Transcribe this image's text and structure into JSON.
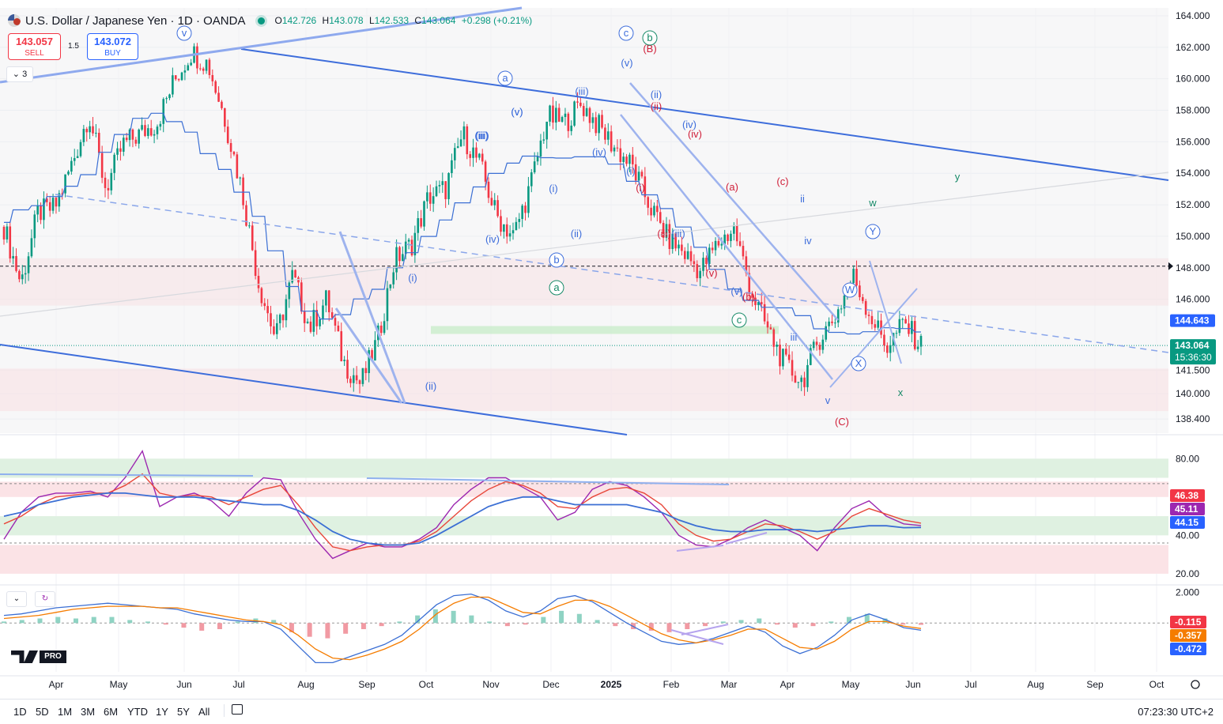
{
  "header": {
    "symbol": "U.S. Dollar / Japanese Yen · 1D · OANDA",
    "o_label": "O",
    "o": "142.726",
    "h_label": "H",
    "h": "143.078",
    "l_label": "L",
    "l": "142.533",
    "c_label": "C",
    "c": "143.064",
    "change": "+0.298 (+0.21%)"
  },
  "trade": {
    "sell_price": "143.057",
    "sell_label": "SELL",
    "spread": "1.5",
    "buy_price": "143.072",
    "buy_label": "BUY"
  },
  "collapse_label": "⌄ 3",
  "colors": {
    "up": "#089981",
    "down": "#f23645",
    "channel": "#3d6ddb",
    "ma": "#3b6fd4",
    "rsi": "#9c27b0",
    "signal": "#f57c00"
  },
  "chart_data": [
    {
      "type": "line",
      "subtype": "candlestick",
      "title": "U.S. Dollar / Japanese Yen · 1D · OANDA",
      "x": [
        "Apr",
        "May",
        "Jun",
        "Jul",
        "Aug",
        "Sep",
        "Oct",
        "Nov",
        "Dec",
        "2025",
        "Feb",
        "Mar",
        "Apr",
        "May",
        "Jun",
        "Jul",
        "Aug",
        "Sep",
        "Oct"
      ],
      "ylim": [
        137.5,
        164.5
      ],
      "y_ticks": [
        "164.000",
        "162.000",
        "160.000",
        "158.000",
        "156.000",
        "154.000",
        "152.000",
        "150.000",
        "148.000",
        "146.000",
        "141.500",
        "140.000",
        "138.400"
      ],
      "series": [
        {
          "values": [
            [
              "Mar",
              150.6
            ],
            [
              "Mar",
              147.0
            ],
            [
              "Apr",
              151.5
            ],
            [
              "Apr",
              151.8
            ],
            [
              "Apr",
              154.6
            ],
            [
              "May",
              157.8
            ],
            [
              "May",
              153.0
            ],
            [
              "May",
              155.8
            ],
            [
              "Jun",
              156.5
            ],
            [
              "Jun",
              157.2
            ],
            [
              "Jun",
              159.8
            ],
            [
              "Jul",
              161.7
            ],
            [
              "Jul",
              161.0
            ],
            [
              "Jul",
              157.5
            ],
            [
              "Jul",
              153.0
            ],
            [
              "Aug",
              147.0
            ],
            [
              "Aug",
              143.5
            ],
            [
              "Aug",
              147.5
            ],
            [
              "Aug",
              144.2
            ],
            [
              "Sep",
              146.0
            ],
            [
              "Sep",
              142.0
            ],
            [
              "Sep",
              140.6
            ],
            [
              "Oct",
              143.4
            ],
            [
              "Oct",
              148.5
            ],
            [
              "Oct",
              149.5
            ],
            [
              "Oct",
              152.5
            ],
            [
              "Nov",
              153.0
            ],
            [
              "Nov",
              156.5
            ],
            [
              "Nov",
              154.6
            ],
            [
              "Dec",
              151.3
            ],
            [
              "Dec",
              150.0
            ],
            [
              "Dec",
              153.2
            ],
            [
              "Dec",
              157.6
            ],
            [
              "2025",
              157.2
            ],
            [
              "2025",
              158.4
            ],
            [
              "2025",
              157.0
            ],
            [
              "2025",
              155.6
            ],
            [
              "Feb",
              154.4
            ],
            [
              "Feb",
              152.0
            ],
            [
              "Feb",
              150.0
            ],
            [
              "Mar",
              149.0
            ],
            [
              "Mar",
              147.8
            ],
            [
              "Mar",
              149.5
            ],
            [
              "Apr",
              150.5
            ],
            [
              "Apr",
              146.5
            ],
            [
              "Apr",
              144.0
            ],
            [
              "Apr",
              141.8
            ],
            [
              "Apr",
              140.8
            ],
            [
              "May",
              143.5
            ],
            [
              "May",
              145.0
            ],
            [
              "May",
              147.5
            ],
            [
              "May",
              145.0
            ],
            [
              "May",
              143.0
            ],
            [
              "Jun",
              144.5
            ],
            [
              "Jun",
              143.064
            ]
          ]
        }
      ],
      "levels": {
        "last": "143.064",
        "countdown": "15:36:30",
        "marker": "144.643",
        "dashed": "148.000"
      },
      "wave_labels": [
        {
          "t": "v"
        },
        {
          "t": "a"
        },
        {
          "t": "c"
        },
        {
          "t": "b"
        },
        {
          "t": "(B)"
        },
        {
          "t": "(v)"
        },
        {
          "t": "(iii)"
        },
        {
          "t": "(ii)"
        },
        {
          "t": "(ii)"
        },
        {
          "t": "(iv)"
        },
        {
          "t": "(iv)"
        },
        {
          "t": "(v)"
        },
        {
          "t": "(iii)"
        },
        {
          "t": "(iv)"
        },
        {
          "t": "(i)"
        },
        {
          "t": "(i)"
        },
        {
          "t": "(a)"
        },
        {
          "t": "(c)"
        },
        {
          "t": "ii"
        },
        {
          "t": "y"
        },
        {
          "t": "w"
        },
        {
          "t": "Y"
        },
        {
          "t": "iv"
        },
        {
          "t": "(iii)"
        },
        {
          "t": "(iii)"
        },
        {
          "t": "(v)"
        },
        {
          "t": "(v)"
        },
        {
          "t": "(b)"
        },
        {
          "t": "c"
        },
        {
          "t": "iii"
        },
        {
          "t": "W"
        },
        {
          "t": "X"
        },
        {
          "t": "x"
        },
        {
          "t": "v"
        },
        {
          "t": "(C)"
        },
        {
          "t": "(i)"
        },
        {
          "t": "(ii)"
        },
        {
          "t": "b"
        },
        {
          "t": "a"
        },
        {
          "t": "(i)"
        },
        {
          "t": "(iv)"
        },
        {
          "t": "(ii)"
        },
        {
          "t": "(iii)"
        },
        {
          "t": "(v)"
        }
      ]
    },
    {
      "type": "line",
      "subtype": "rsi",
      "ylim": [
        15,
        90
      ],
      "y_ticks": [
        "80.00",
        "40.00",
        "20.00"
      ],
      "bands": {
        "upper": [
          70,
          80
        ],
        "neutral": [
          40,
          50
        ],
        "lower": [
          20,
          35
        ]
      },
      "series": [
        {
          "values": [
            38,
            52,
            60,
            62,
            62,
            63,
            60,
            70,
            84,
            55,
            60,
            62,
            58,
            50,
            62,
            70,
            69,
            52,
            38,
            28,
            32,
            36,
            34,
            34,
            38,
            44,
            56,
            64,
            70,
            70,
            65,
            60,
            48,
            52,
            64,
            68,
            66,
            60,
            52,
            40,
            35,
            34,
            38,
            44,
            48,
            44,
            40,
            32,
            44,
            54,
            58,
            50,
            46,
            45.11
          ]
        },
        {
          "values": [
            46,
            50,
            56,
            60,
            61,
            62,
            62,
            66,
            72,
            62,
            60,
            61,
            60,
            56,
            60,
            64,
            66,
            56,
            44,
            34,
            32,
            34,
            35,
            35,
            37,
            42,
            50,
            58,
            64,
            68,
            66,
            62,
            55,
            54,
            60,
            64,
            65,
            62,
            56,
            46,
            40,
            37,
            38,
            42,
            46,
            45,
            42,
            38,
            42,
            50,
            54,
            51,
            48,
            46.38
          ]
        },
        {
          "values": [
            50,
            52,
            56,
            58,
            60,
            61,
            62,
            62,
            61,
            60,
            60,
            60,
            59,
            58,
            57,
            56,
            56,
            53,
            48,
            42,
            38,
            36,
            35,
            35,
            36,
            40,
            45,
            50,
            55,
            58,
            60,
            60,
            58,
            56,
            56,
            56,
            56,
            54,
            52,
            48,
            45,
            43,
            42,
            42,
            43,
            43,
            43,
            42,
            43,
            44,
            45,
            45,
            44,
            44.15
          ]
        }
      ]
    },
    {
      "type": "bar",
      "subtype": "macd",
      "ylim": [
        -3.2,
        2.4
      ],
      "y_ticks": [
        "2.000"
      ],
      "series": [
        {
          "values": [
            0.1,
            0.2,
            0.3,
            0.4,
            0.3,
            0.4,
            0.4,
            0.2,
            0.1,
            -0.1,
            -0.3,
            -0.5,
            -0.4,
            0.1,
            0.3,
            0.2,
            -0.6,
            -0.9,
            -1.0,
            -0.7,
            -0.4,
            -0.2,
            0.1,
            0.5,
            0.9,
            0.8,
            0.5,
            0.1,
            -0.2,
            -0.1,
            0.4,
            0.8,
            0.6,
            0.2,
            -0.2,
            -0.4,
            -0.5,
            -0.6,
            -0.4,
            -0.2,
            0.1,
            0.2,
            0.3,
            -0.1,
            -0.3,
            -0.2,
            0.1,
            0.4,
            0.6,
            0.3,
            -0.1,
            -0.115
          ]
        },
        {
          "values": [
            0.5,
            0.6,
            0.8,
            1.0,
            1.1,
            1.2,
            1.3,
            1.2,
            1.1,
            1.0,
            0.9,
            0.6,
            0.4,
            0.2,
            0.1,
            0.1,
            -0.4,
            -1.5,
            -2.6,
            -2.6,
            -2.2,
            -1.8,
            -1.4,
            -0.8,
            0.2,
            1.2,
            1.8,
            1.9,
            1.5,
            0.8,
            0.4,
            0.8,
            1.6,
            1.8,
            1.4,
            0.7,
            0.0,
            -0.6,
            -1.2,
            -1.4,
            -1.3,
            -1.0,
            -0.6,
            -0.2,
            -0.6,
            -1.5,
            -2.0,
            -1.6,
            -0.8,
            0.2,
            0.6,
            0.2,
            -0.3,
            -0.472
          ]
        },
        {
          "values": [
            0.3,
            0.4,
            0.5,
            0.7,
            0.9,
            1.0,
            1.1,
            1.1,
            1.1,
            1.0,
            1.0,
            0.8,
            0.6,
            0.4,
            0.2,
            0.1,
            -0.1,
            -0.8,
            -1.7,
            -2.3,
            -2.4,
            -2.1,
            -1.7,
            -1.2,
            -0.4,
            0.6,
            1.3,
            1.7,
            1.7,
            1.2,
            0.7,
            0.6,
            1.1,
            1.5,
            1.5,
            1.1,
            0.5,
            -0.1,
            -0.7,
            -1.1,
            -1.3,
            -1.1,
            -0.8,
            -0.4,
            -0.4,
            -1.0,
            -1.6,
            -1.7,
            -1.2,
            -0.4,
            0.1,
            0.1,
            -0.2,
            -0.357
          ]
        }
      ]
    }
  ],
  "bottom_bar": {
    "ranges": [
      "1D",
      "5D",
      "1M",
      "3M",
      "6M",
      "YTD",
      "1Y",
      "5Y",
      "All"
    ],
    "clock": "07:23:30 UTC+2"
  }
}
